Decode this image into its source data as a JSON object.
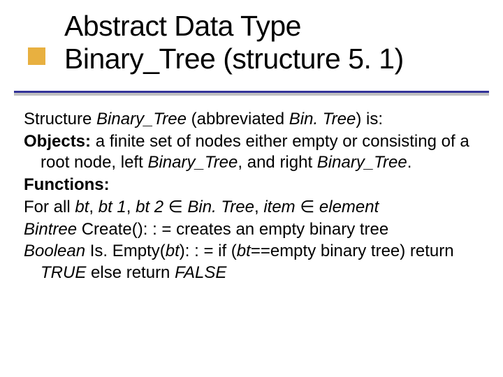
{
  "colors": {
    "background": "#ffffff",
    "text": "#000000",
    "accent_square": "#e8b040",
    "rule": "#333399",
    "rule_shadow": "#c0c0c0"
  },
  "typography": {
    "title_fontsize_pt": 31,
    "body_fontsize_pt": 18,
    "font_family": "Verdana"
  },
  "title": {
    "line1": "Abstract Data Type",
    "line2": "Binary_Tree (structure 5. 1)"
  },
  "body": {
    "p1": {
      "prefix": "Structure ",
      "name": "Binary_Tree",
      "mid": " (abbreviated ",
      "abbr": "Bin. Tree",
      "suffix": ") is:"
    },
    "p2": {
      "label": "Objects:",
      "text1": " a finite set of nodes either empty or consisting of a root node, left ",
      "bt1": "Binary_Tree",
      "text2": ", and right ",
      "bt2": "Binary_Tree",
      "text3": "."
    },
    "p3": {
      "label": "Functions:"
    },
    "p4": {
      "t1": "For all ",
      "bt": "bt",
      "c1": ", ",
      "bt1": "bt 1",
      "c2": ", ",
      "bt2": "bt 2",
      "in1": " ∈ ",
      "bint": "Bin. Tree",
      "c3": ", ",
      "item": "item",
      "in2": " ∈ ",
      "elem": "element"
    },
    "p5": {
      "ret": "Bintree",
      "fn": " Create(): : = creates an empty binary tree"
    },
    "p6": {
      "ret": "Boolean",
      "fn1": " Is. Empty(",
      "arg": "bt",
      "fn2": "): : = if (",
      "expr": "bt",
      "fn3": "==empty binary tree) return ",
      "true": "TRUE",
      "fn4": " else return ",
      "false": "FALSE"
    }
  }
}
